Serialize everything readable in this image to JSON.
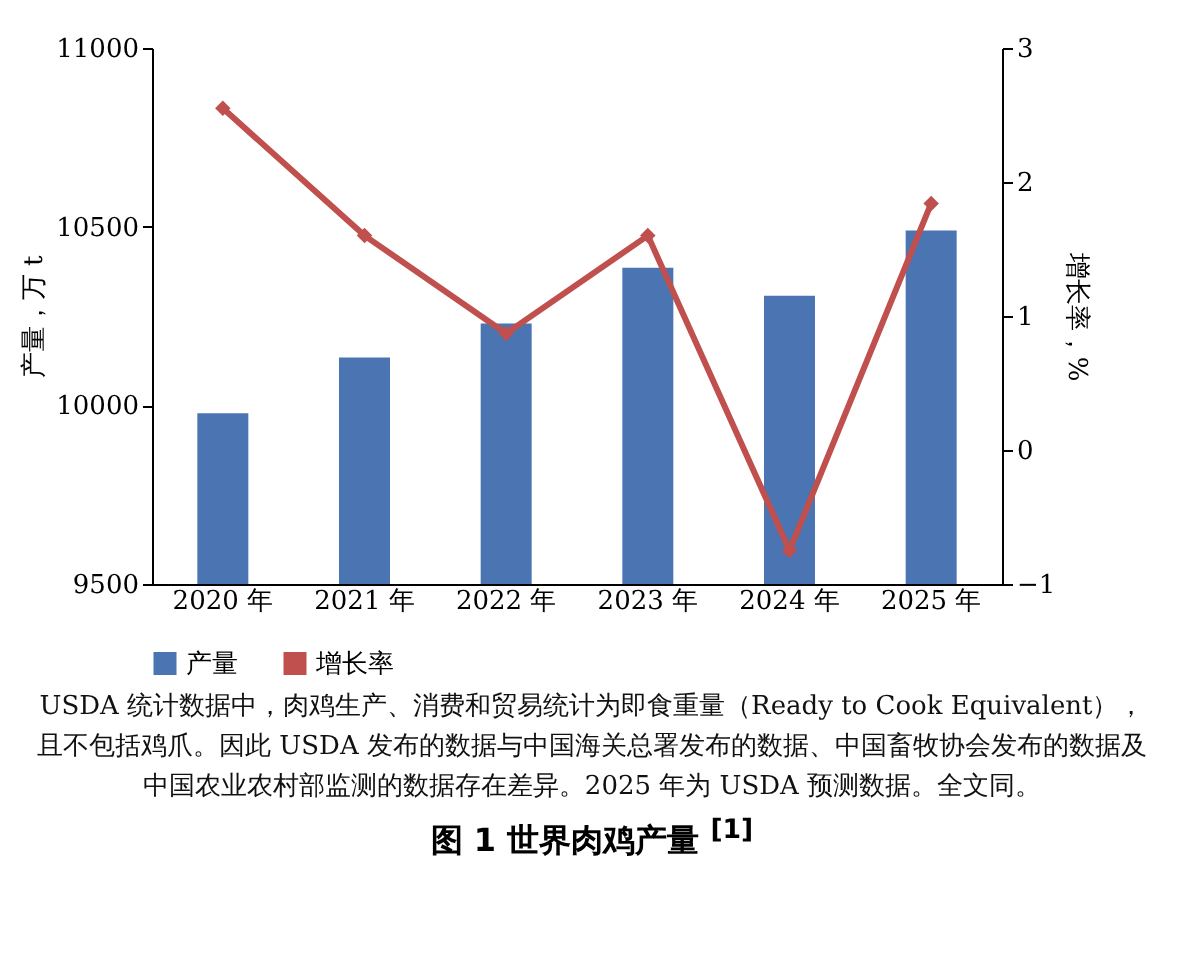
{
  "chart_data": {
    "type": "bar",
    "title": "图 1  世界肉鸡产量 $^{[1]}$",
    "ylabel": "产量，万 t",
    "y2label": "增长率，%",
    "categories": [
      "2020 年",
      "2021 年",
      "2022 年",
      "2023 年",
      "2024 年",
      "2025 年"
    ],
    "series": [
      {
        "name": "产量",
        "color": "#4a74b2",
        "values": [
          9978,
          10134,
          10229,
          10385,
          10307,
          10489
        ]
      },
      {
        "name": "增长率",
        "type": "line",
        "axis": "y2",
        "color": "#c0504d",
        "marker": "diamond",
        "values": [
          2.55,
          1.6,
          0.87,
          1.6,
          -0.75,
          1.84
        ]
      }
    ],
    "ylim": [
      9500,
      11000
    ],
    "yticks": [
      9500,
      10000,
      10500,
      11000
    ],
    "y2lim": [
      -1,
      3
    ],
    "y2ticks": [
      -1,
      0,
      1,
      2,
      3
    ],
    "legend": "bottom",
    "grid": false,
    "annotations": [
      "USDA 统计数据中，肉鸡生产、消费和贸易统计为即食重量（Ready to Cook Equivalent），且不包括鸡爪。因此 USDA 发布的数据与中国海关总署发布的数据、中国畜牧协会发布的数据及中国农业农村部监测的数据存在差异。2025 年为 USDA 预测数据。全文同。"
    ]
  }
}
